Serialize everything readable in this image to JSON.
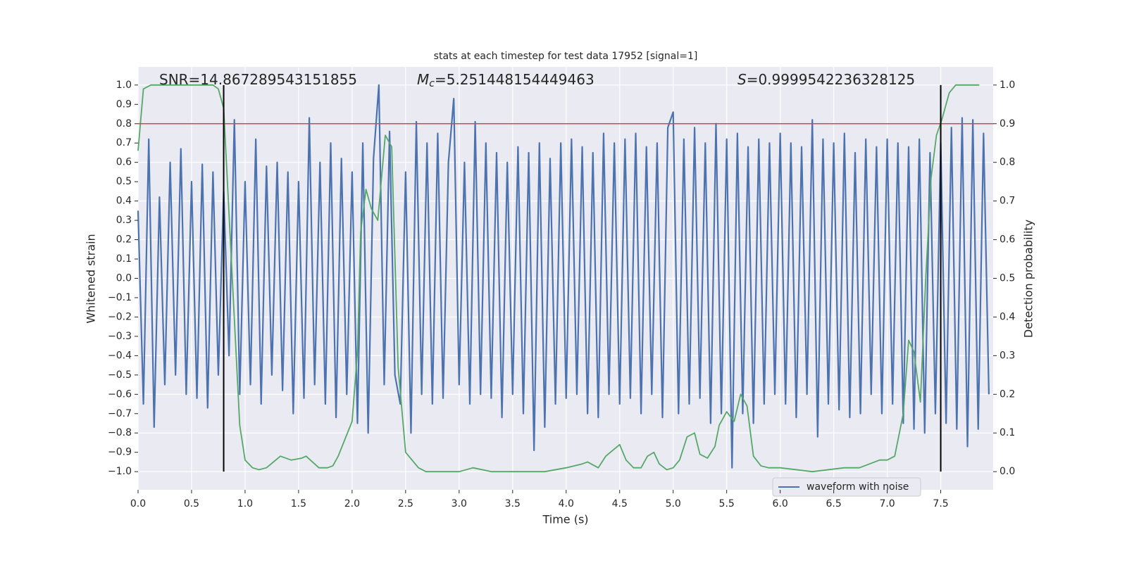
{
  "chart_data": {
    "type": "line",
    "title": "stats at each timestep for test data 17952 [signal=1]",
    "xlabel": "Time (s)",
    "ylabel": "Whitened strain",
    "y2label": "Detection probability",
    "annotations": [
      {
        "parts": [
          "SNR=14.867289543151855"
        ]
      },
      {
        "parts": [
          "M",
          "c",
          "=5.251448154449463"
        ]
      },
      {
        "parts": [
          "S",
          "=0.9999542236328125"
        ]
      }
    ],
    "xlim": [
      0,
      7.99
    ],
    "ylim": [
      -1.094,
      1.094
    ],
    "y2lim": [
      -0.047,
      1.047
    ],
    "xticks": [
      {
        "value": 0,
        "label": "0.0"
      },
      0.5,
      {
        "value": 1,
        "label": "1.0"
      },
      1.5,
      {
        "value": 2,
        "label": "2.0"
      },
      2.5,
      {
        "value": 3,
        "label": "3.0"
      },
      3.5,
      {
        "value": 4,
        "label": "4.0"
      },
      4.5,
      {
        "value": 5,
        "label": "5.0"
      },
      5.5,
      {
        "value": 6,
        "label": "6.0"
      },
      6.5,
      {
        "value": 7,
        "label": "7.0"
      },
      7.5
    ],
    "yticks": [
      {
        "value": -1,
        "label": "−1.0"
      },
      {
        "value": -0.9,
        "label": "−0.9"
      },
      {
        "value": -0.8,
        "label": "−0.8"
      },
      {
        "value": -0.7,
        "label": "−0.7"
      },
      {
        "value": -0.6,
        "label": "−0.6"
      },
      {
        "value": -0.5,
        "label": "−0.5"
      },
      {
        "value": -0.4,
        "label": "−0.4"
      },
      {
        "value": -0.3,
        "label": "−0.3"
      },
      {
        "value": -0.2,
        "label": "−0.2"
      },
      {
        "value": -0.1,
        "label": "−0.1"
      },
      {
        "value": 0,
        "label": "0.0"
      },
      0.1,
      0.2,
      0.3,
      0.4,
      0.5,
      0.6,
      0.7,
      0.8,
      0.9,
      {
        "value": 1,
        "label": "1.0"
      }
    ],
    "y2ticks": [
      {
        "value": 0,
        "label": "0.0"
      },
      0.1,
      0.2,
      0.3,
      0.4,
      0.5,
      0.6,
      0.7,
      0.8,
      0.9,
      {
        "value": 1,
        "label": "1.0"
      }
    ],
    "grid": true,
    "legend": "lower right",
    "hlines": [
      {
        "y": 0.8,
        "color": "#c44e52"
      }
    ],
    "vlines": [
      {
        "x": 0.8,
        "ymin": 0,
        "ymax": 1,
        "axis": "y2",
        "color": "#000000"
      },
      {
        "x": 7.5,
        "ymin": 0,
        "ymax": 1,
        "axis": "y2",
        "color": "#000000"
      }
    ],
    "series": [
      {
        "name": "waveform with noise",
        "color": "#4c72b0",
        "x": [
          0,
          0.05,
          0.1,
          0.15,
          0.2,
          0.25,
          0.3,
          0.35,
          0.4,
          0.45,
          0.5,
          0.55,
          0.6,
          0.65,
          0.7,
          0.75,
          0.8,
          0.85,
          0.9,
          0.95,
          1,
          1.05,
          1.1,
          1.15,
          1.2,
          1.25,
          1.3,
          1.35,
          1.4,
          1.45,
          1.5,
          1.55,
          1.6,
          1.65,
          1.7,
          1.75,
          1.8,
          1.85,
          1.9,
          1.95,
          2,
          2.05,
          2.1,
          2.15,
          2.2,
          2.25,
          2.3,
          2.35,
          2.4,
          2.45,
          2.5,
          2.55,
          2.6,
          2.65,
          2.7,
          2.75,
          2.8,
          2.85,
          2.9,
          2.95,
          3,
          3.05,
          3.1,
          3.15,
          3.2,
          3.25,
          3.3,
          3.35,
          3.4,
          3.45,
          3.5,
          3.55,
          3.6,
          3.65,
          3.7,
          3.75,
          3.8,
          3.85,
          3.9,
          3.95,
          4,
          4.05,
          4.1,
          4.15,
          4.2,
          4.25,
          4.3,
          4.35,
          4.4,
          4.45,
          4.5,
          4.55,
          4.6,
          4.65,
          4.7,
          4.75,
          4.8,
          4.85,
          4.9,
          4.95,
          5,
          5.05,
          5.1,
          5.15,
          5.2,
          5.25,
          5.3,
          5.35,
          5.4,
          5.45,
          5.5,
          5.55,
          5.6,
          5.65,
          5.7,
          5.75,
          5.8,
          5.85,
          5.9,
          5.95,
          6,
          6.05,
          6.1,
          6.15,
          6.2,
          6.25,
          6.3,
          6.35,
          6.4,
          6.45,
          6.5,
          6.55,
          6.6,
          6.65,
          6.7,
          6.75,
          6.8,
          6.85,
          6.9,
          6.95,
          7,
          7.05,
          7.1,
          7.15,
          7.2,
          7.25,
          7.3,
          7.35,
          7.4,
          7.45,
          7.5,
          7.55,
          7.6,
          7.65,
          7.7,
          7.75,
          7.8,
          7.85,
          7.9,
          7.95
        ],
        "values": [
          0.35,
          -0.65,
          0.72,
          -0.77,
          0.42,
          -0.55,
          0.6,
          -0.5,
          0.67,
          -0.6,
          0.5,
          -0.62,
          0.59,
          -0.67,
          0.55,
          -0.5,
          0.45,
          -0.4,
          0.82,
          -0.6,
          0.5,
          -0.55,
          0.72,
          -0.65,
          0.58,
          -0.5,
          0.6,
          -0.58,
          0.55,
          -0.7,
          0.5,
          -0.62,
          0.83,
          -0.55,
          0.6,
          -0.65,
          0.7,
          -0.72,
          0.62,
          -0.6,
          0.55,
          -0.75,
          0.7,
          -0.8,
          0.62,
          1.0,
          -0.55,
          0.76,
          -0.5,
          -0.65,
          0.55,
          -0.8,
          0.81,
          -0.6,
          0.7,
          -0.65,
          0.75,
          -0.62,
          0.6,
          0.93,
          -0.55,
          0.6,
          -0.65,
          0.81,
          -0.6,
          0.7,
          -0.62,
          0.65,
          -0.72,
          0.6,
          -0.6,
          0.68,
          -0.7,
          0.65,
          -0.89,
          0.7,
          -0.77,
          0.62,
          -0.65,
          0.7,
          -0.62,
          0.72,
          -0.6,
          0.68,
          -0.7,
          0.65,
          -0.72,
          0.75,
          -0.6,
          0.7,
          -0.65,
          0.72,
          -0.62,
          0.75,
          -0.7,
          0.68,
          -0.6,
          0.7,
          -0.72,
          0.78,
          0.86,
          -0.7,
          0.72,
          -0.65,
          0.78,
          -0.62,
          0.7,
          -0.75,
          0.8,
          -0.7,
          0.72,
          -0.98,
          0.75,
          -0.7,
          0.68,
          -0.75,
          0.72,
          -0.65,
          0.7,
          -0.6,
          0.75,
          -0.65,
          0.7,
          -0.72,
          0.68,
          -0.6,
          0.82,
          -0.82,
          0.72,
          -0.65,
          0.7,
          -0.68,
          0.75,
          -0.72,
          0.65,
          -0.7,
          0.72,
          -0.6,
          0.68,
          -0.7,
          0.72,
          -0.65,
          0.7,
          -0.75,
          0.68,
          -0.78,
          0.72,
          -0.8,
          0.65,
          -0.7,
          0.7,
          -0.75,
          0.78,
          -0.78,
          0.83,
          -0.87,
          0.82,
          -0.78,
          0.75,
          -0.6
        ]
      },
      {
        "color": "#55a868",
        "axis": "y2",
        "x": [
          0,
          0.05,
          0.12,
          0.7,
          0.75,
          0.8,
          0.95,
          1,
          1.07,
          1.13,
          1.2,
          1.33,
          1.43,
          1.53,
          1.57,
          1.69,
          1.77,
          1.82,
          1.87,
          2,
          2.05,
          2.08,
          2.13,
          2.18,
          2.24,
          2.31,
          2.37,
          2.43,
          2.5,
          2.62,
          2.69,
          3,
          3.13,
          3.3,
          3.8,
          4,
          4.15,
          4.2,
          4.3,
          4.37,
          4.5,
          4.56,
          4.63,
          4.7,
          4.76,
          4.82,
          4.87,
          4.94,
          5,
          5.06,
          5.13,
          5.2,
          5.25,
          5.32,
          5.39,
          5.43,
          5.5,
          5.57,
          5.63,
          5.69,
          5.75,
          5.82,
          5.89,
          6,
          6.3,
          6.6,
          6.74,
          6.93,
          7,
          7.07,
          7.15,
          7.2,
          7.25,
          7.31,
          7.36,
          7.41,
          7.46,
          7.51,
          7.58,
          7.64,
          7.86
        ],
        "values": [
          0.83,
          0.99,
          1.0,
          1.0,
          0.99,
          0.94,
          0.12,
          0.03,
          0.01,
          0.005,
          0.01,
          0.04,
          0.03,
          0.035,
          0.04,
          0.01,
          0.01,
          0.015,
          0.04,
          0.13,
          0.31,
          0.62,
          0.73,
          0.68,
          0.65,
          0.87,
          0.84,
          0.27,
          0.05,
          0.01,
          0.0,
          0.0,
          0.01,
          0.0,
          0.0,
          0.01,
          0.02,
          0.025,
          0.01,
          0.04,
          0.07,
          0.03,
          0.01,
          0.01,
          0.04,
          0.05,
          0.02,
          0.005,
          0.01,
          0.03,
          0.09,
          0.1,
          0.045,
          0.035,
          0.065,
          0.12,
          0.155,
          0.13,
          0.2,
          0.17,
          0.04,
          0.015,
          0.01,
          0.01,
          0.0,
          0.01,
          0.01,
          0.03,
          0.03,
          0.04,
          0.15,
          0.34,
          0.31,
          0.18,
          0.5,
          0.76,
          0.87,
          0.91,
          0.98,
          1.0,
          1.0
        ]
      }
    ]
  }
}
